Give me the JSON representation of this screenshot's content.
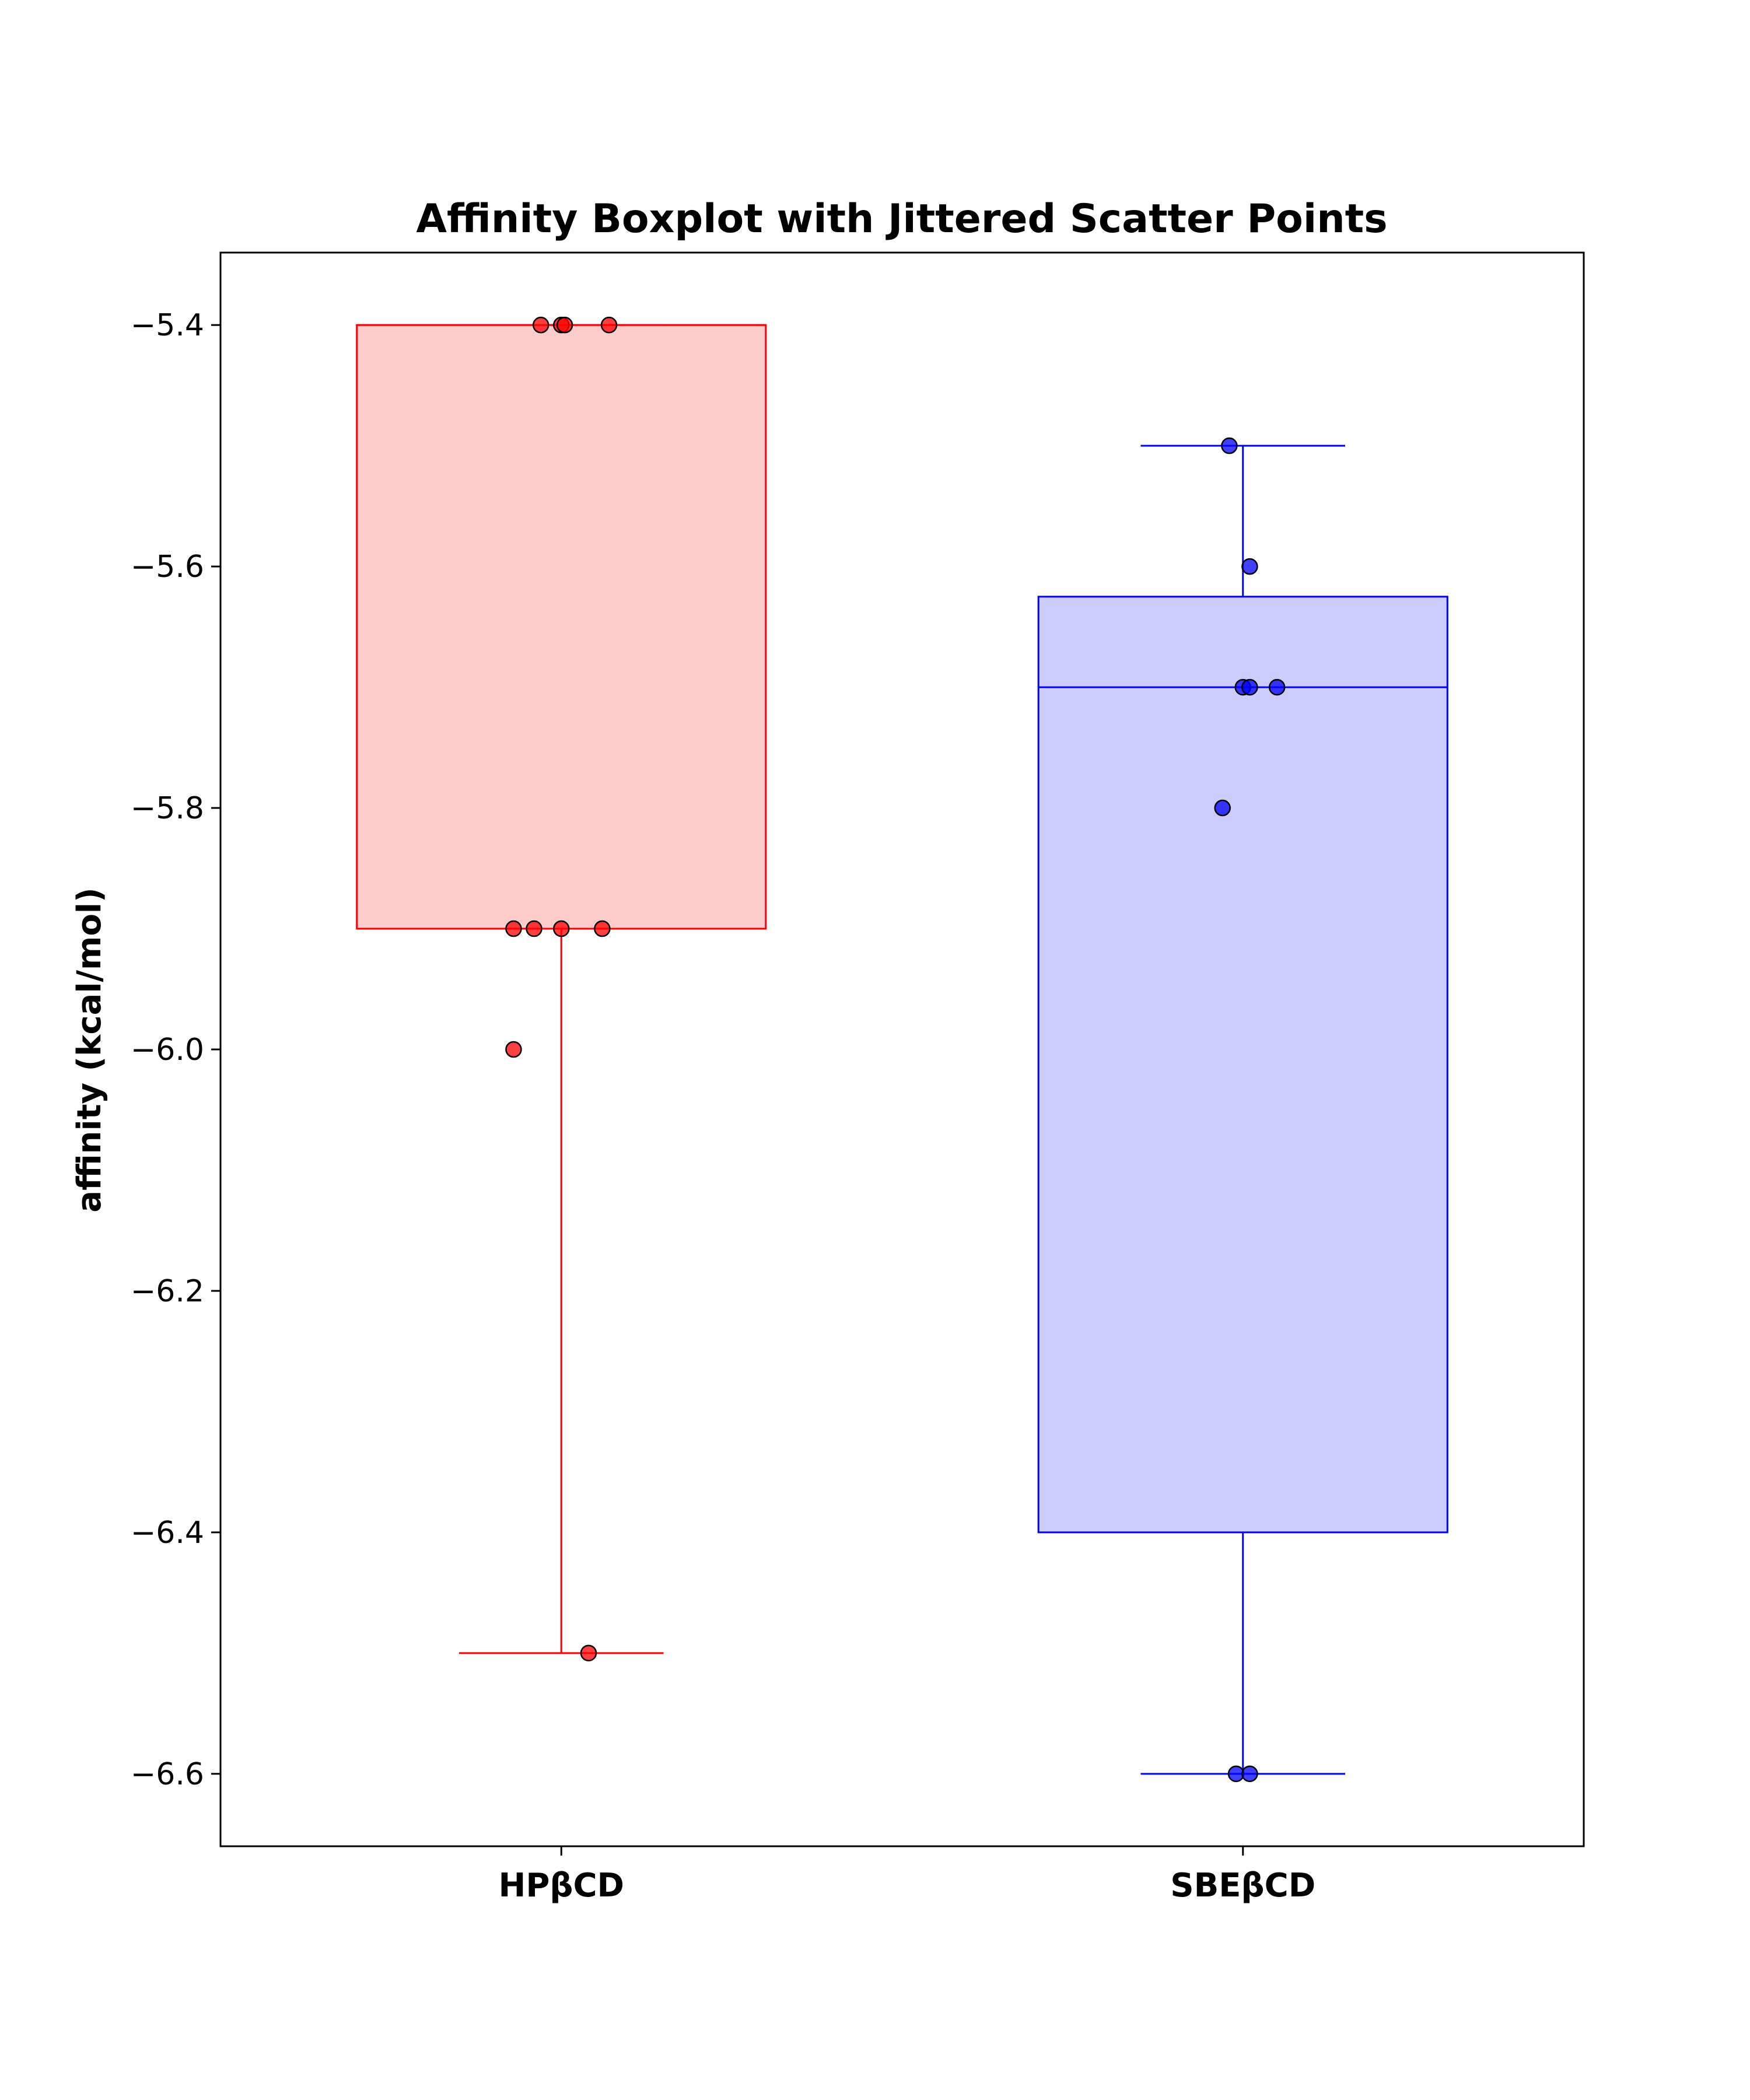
{
  "chart_data": {
    "type": "box",
    "title": "Affinity Boxplot with Jittered Scatter Points",
    "xlabel": "",
    "ylabel": "affinity (kcal/mol)",
    "ylim": [
      -6.66,
      -5.34
    ],
    "y_ticks": [
      -5.4,
      -5.6,
      -5.8,
      -6.0,
      -6.2,
      -6.4,
      -6.6
    ],
    "y_tick_labels": [
      "−5.4",
      "−5.6",
      "−5.8",
      "−6.0",
      "−6.2",
      "−6.4",
      "−6.6"
    ],
    "categories": [
      "HPβCD",
      "SBEβCD"
    ],
    "grid": false,
    "series": [
      {
        "category": "HPβCD",
        "color": "#ff0000",
        "fill": "#ffcccc",
        "box": {
          "q1": -5.9,
          "median": -5.4,
          "q3": -5.4,
          "whisker_low": -6.5,
          "whisker_high": -5.4
        },
        "points": [
          {
            "x_jitter": -0.03,
            "y": -5.4
          },
          {
            "x_jitter": 0.0,
            "y": -5.4
          },
          {
            "x_jitter": 0.005,
            "y": -5.4
          },
          {
            "x_jitter": 0.07,
            "y": -5.4
          },
          {
            "x_jitter": -0.07,
            "y": -5.9
          },
          {
            "x_jitter": -0.04,
            "y": -5.9
          },
          {
            "x_jitter": 0.0,
            "y": -5.9
          },
          {
            "x_jitter": 0.06,
            "y": -5.9
          },
          {
            "x_jitter": -0.07,
            "y": -6.0
          },
          {
            "x_jitter": 0.04,
            "y": -6.5
          }
        ]
      },
      {
        "category": "SBEβCD",
        "color": "#0000ff",
        "fill": "#ccccff",
        "box": {
          "q1": -6.4,
          "median": -5.7,
          "q3": -5.625,
          "whisker_low": -6.6,
          "whisker_high": -5.5
        },
        "points": [
          {
            "x_jitter": -0.02,
            "y": -5.5
          },
          {
            "x_jitter": 0.01,
            "y": -5.6
          },
          {
            "x_jitter": 0.0,
            "y": -5.7
          },
          {
            "x_jitter": 0.01,
            "y": -5.7
          },
          {
            "x_jitter": 0.05,
            "y": -5.7
          },
          {
            "x_jitter": -0.03,
            "y": -5.8
          },
          {
            "x_jitter": -0.01,
            "y": -6.6
          },
          {
            "x_jitter": 0.01,
            "y": -6.6
          }
        ]
      }
    ]
  }
}
